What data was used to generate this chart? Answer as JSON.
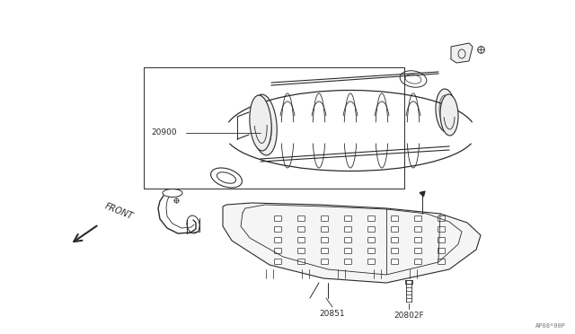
{
  "bg_color": "#ffffff",
  "line_color": "#2a2a2a",
  "text_color": "#2a2a2a",
  "label_20900": "20900",
  "label_20851": "20851",
  "label_20802F": "20802F",
  "label_FRONT": "FRONT",
  "watermark": "AP08*00P",
  "figsize": [
    6.4,
    3.72
  ],
  "dpi": 100
}
